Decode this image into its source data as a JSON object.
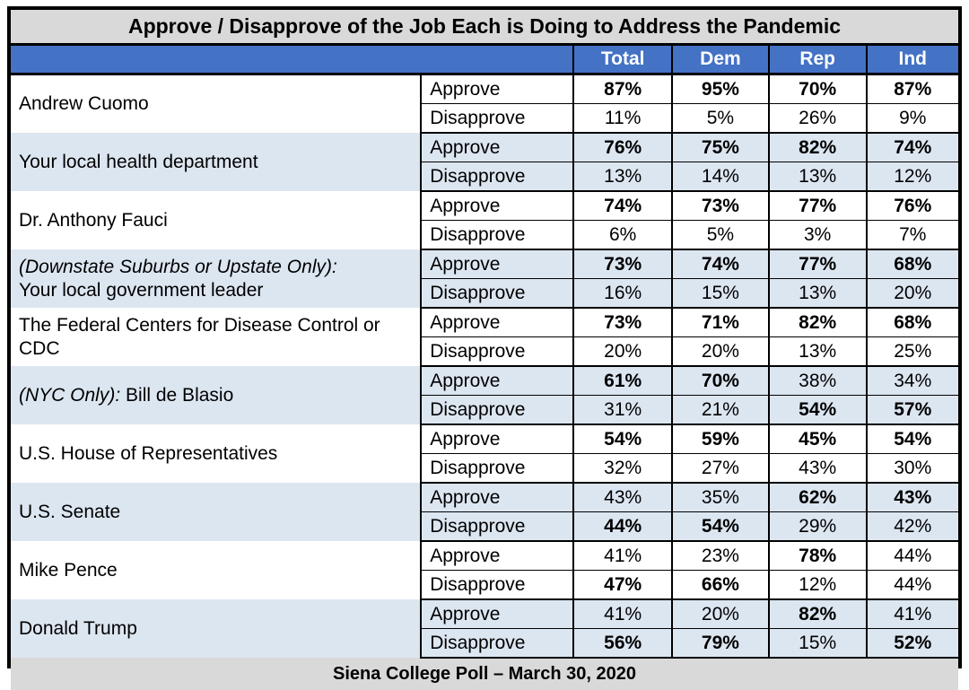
{
  "title": "Approve / Disapprove of the Job Each is Doing to Address the Pandemic",
  "footer": "Siena College Poll – March 30, 2020",
  "header": {
    "columns": [
      "Total",
      "Dem",
      "Rep",
      "Ind"
    ]
  },
  "labels": {
    "approve": "Approve",
    "disapprove": "Disapprove"
  },
  "colors": {
    "header_bg": "#4472c4",
    "header_text": "#ffffff",
    "band_bg": "#dce6f1",
    "panel_bg": "#d9d9d9",
    "border": "#000000"
  },
  "groups": [
    {
      "name_italic": "",
      "name_text": "Andrew Cuomo",
      "name_break": false,
      "shaded": false,
      "approve": [
        "87%",
        "95%",
        "70%",
        "87%"
      ],
      "approve_bold": [
        true,
        true,
        true,
        true
      ],
      "disapprove": [
        "11%",
        "5%",
        "26%",
        "9%"
      ],
      "disapprove_bold": [
        false,
        false,
        false,
        false
      ]
    },
    {
      "name_italic": "",
      "name_text": "Your local health department",
      "name_break": false,
      "shaded": true,
      "approve": [
        "76%",
        "75%",
        "82%",
        "74%"
      ],
      "approve_bold": [
        true,
        true,
        true,
        true
      ],
      "disapprove": [
        "13%",
        "14%",
        "13%",
        "12%"
      ],
      "disapprove_bold": [
        false,
        false,
        false,
        false
      ]
    },
    {
      "name_italic": "",
      "name_text": "Dr. Anthony Fauci",
      "name_break": false,
      "shaded": false,
      "approve": [
        "74%",
        "73%",
        "77%",
        "76%"
      ],
      "approve_bold": [
        true,
        true,
        true,
        true
      ],
      "disapprove": [
        "6%",
        "5%",
        "3%",
        "7%"
      ],
      "disapprove_bold": [
        false,
        false,
        false,
        false
      ]
    },
    {
      "name_italic": "(Downstate Suburbs or Upstate Only):",
      "name_text": "Your local government leader",
      "name_break": true,
      "shaded": true,
      "approve": [
        "73%",
        "74%",
        "77%",
        "68%"
      ],
      "approve_bold": [
        true,
        true,
        true,
        true
      ],
      "disapprove": [
        "16%",
        "15%",
        "13%",
        "20%"
      ],
      "disapprove_bold": [
        false,
        false,
        false,
        false
      ]
    },
    {
      "name_italic": "",
      "name_text": "The Federal Centers for Disease Control or CDC",
      "name_break": false,
      "shaded": false,
      "approve": [
        "73%",
        "71%",
        "82%",
        "68%"
      ],
      "approve_bold": [
        true,
        true,
        true,
        true
      ],
      "disapprove": [
        "20%",
        "20%",
        "13%",
        "25%"
      ],
      "disapprove_bold": [
        false,
        false,
        false,
        false
      ]
    },
    {
      "name_italic": "(NYC Only):",
      "name_text": "Bill de Blasio",
      "name_break": false,
      "shaded": true,
      "approve": [
        "61%",
        "70%",
        "38%",
        "34%"
      ],
      "approve_bold": [
        true,
        true,
        false,
        false
      ],
      "disapprove": [
        "31%",
        "21%",
        "54%",
        "57%"
      ],
      "disapprove_bold": [
        false,
        false,
        true,
        true
      ]
    },
    {
      "name_italic": "",
      "name_text": "U.S. House of Representatives",
      "name_break": false,
      "shaded": false,
      "approve": [
        "54%",
        "59%",
        "45%",
        "54%"
      ],
      "approve_bold": [
        true,
        true,
        true,
        true
      ],
      "disapprove": [
        "32%",
        "27%",
        "43%",
        "30%"
      ],
      "disapprove_bold": [
        false,
        false,
        false,
        false
      ]
    },
    {
      "name_italic": "",
      "name_text": "U.S. Senate",
      "name_break": false,
      "shaded": true,
      "approve": [
        "43%",
        "35%",
        "62%",
        "43%"
      ],
      "approve_bold": [
        false,
        false,
        true,
        true
      ],
      "disapprove": [
        "44%",
        "54%",
        "29%",
        "42%"
      ],
      "disapprove_bold": [
        true,
        true,
        false,
        false
      ]
    },
    {
      "name_italic": "",
      "name_text": "Mike Pence",
      "name_break": false,
      "shaded": false,
      "approve": [
        "41%",
        "23%",
        "78%",
        "44%"
      ],
      "approve_bold": [
        false,
        false,
        true,
        false
      ],
      "disapprove": [
        "47%",
        "66%",
        "12%",
        "44%"
      ],
      "disapprove_bold": [
        true,
        true,
        false,
        false
      ]
    },
    {
      "name_italic": "",
      "name_text": "Donald Trump",
      "name_break": false,
      "shaded": true,
      "approve": [
        "41%",
        "20%",
        "82%",
        "41%"
      ],
      "approve_bold": [
        false,
        false,
        true,
        false
      ],
      "disapprove": [
        "56%",
        "79%",
        "15%",
        "52%"
      ],
      "disapprove_bold": [
        true,
        true,
        false,
        true
      ]
    }
  ]
}
